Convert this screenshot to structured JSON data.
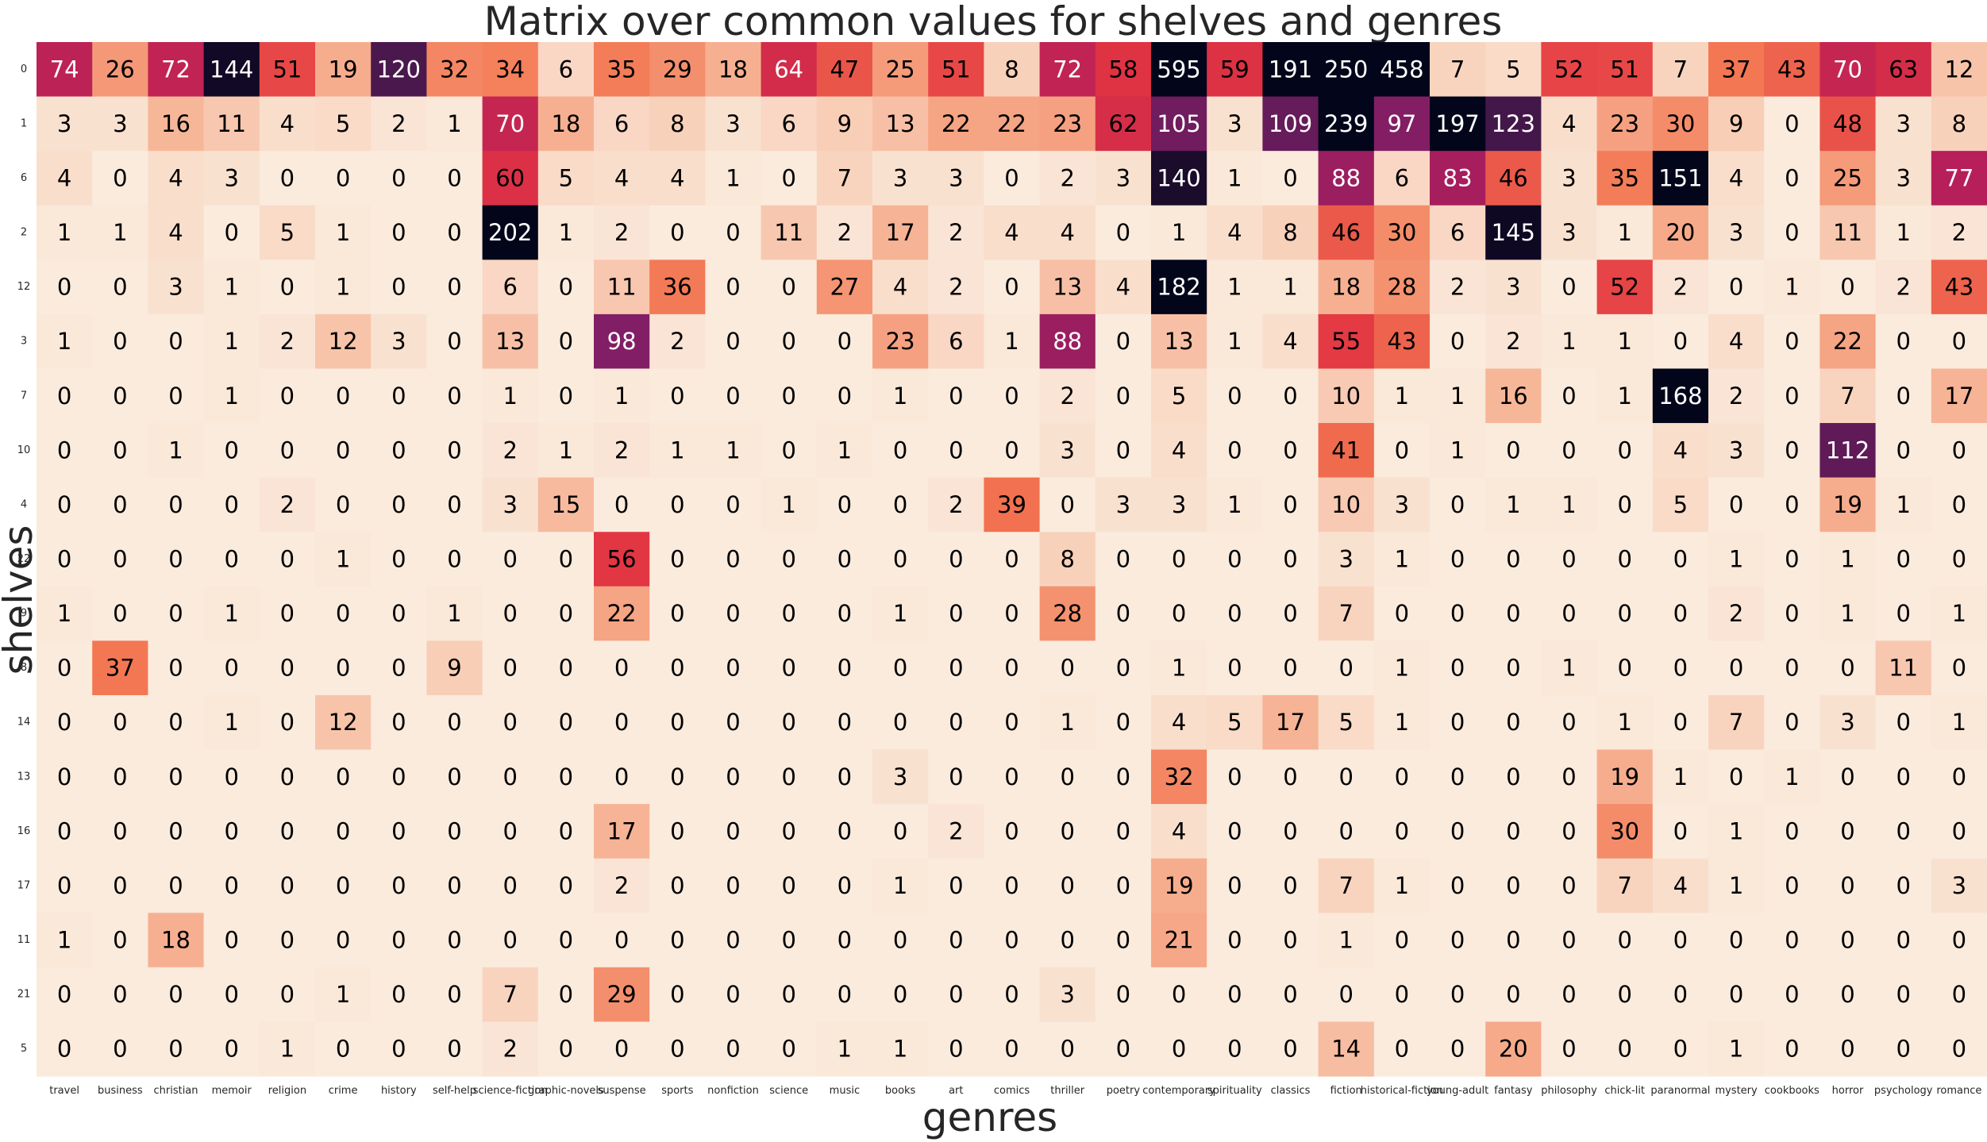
{
  "chart_data": {
    "type": "heatmap",
    "title": "Matrix over common values for shelves and genres",
    "xlabel": "genres",
    "ylabel": "shelves",
    "x_categories": [
      "travel",
      "business",
      "christian",
      "memoir",
      "religion",
      "crime",
      "history",
      "self-help",
      "science-fiction",
      "graphic-novels",
      "suspense",
      "sports",
      "nonfiction",
      "science",
      "music",
      "books",
      "art",
      "comics",
      "thriller",
      "poetry",
      "contemporary",
      "spirituality",
      "classics",
      "fiction",
      "historical-fiction",
      "young-adult",
      "fantasy",
      "philosophy",
      "chick-lit",
      "paranormal",
      "mystery",
      "cookbooks",
      "horror",
      "psychology",
      "romance"
    ],
    "y_categories": [
      "0",
      "1",
      "6",
      "2",
      "12",
      "3",
      "7",
      "10",
      "4",
      "22",
      "9",
      "8",
      "14",
      "13",
      "16",
      "17",
      "11",
      "21",
      "5"
    ],
    "values": [
      [
        74,
        26,
        72,
        144,
        51,
        19,
        120,
        32,
        34,
        6,
        35,
        29,
        18,
        64,
        47,
        25,
        51,
        8,
        72,
        58,
        595,
        59,
        191,
        250,
        458,
        7,
        5,
        52,
        51,
        7,
        37,
        43,
        70,
        63,
        12
      ],
      [
        3,
        3,
        16,
        11,
        4,
        5,
        2,
        1,
        70,
        18,
        6,
        8,
        3,
        6,
        9,
        13,
        22,
        22,
        23,
        62,
        105,
        3,
        109,
        239,
        97,
        197,
        123,
        4,
        23,
        30,
        9,
        0,
        48,
        3,
        8
      ],
      [
        4,
        0,
        4,
        3,
        0,
        0,
        0,
        0,
        60,
        5,
        4,
        4,
        1,
        0,
        7,
        3,
        3,
        0,
        2,
        3,
        140,
        1,
        0,
        88,
        6,
        83,
        46,
        3,
        35,
        151,
        4,
        0,
        25,
        3,
        77
      ],
      [
        1,
        1,
        4,
        0,
        5,
        1,
        0,
        0,
        202,
        1,
        2,
        0,
        0,
        11,
        2,
        17,
        2,
        4,
        4,
        0,
        1,
        4,
        8,
        46,
        30,
        6,
        145,
        3,
        1,
        20,
        3,
        0,
        11,
        1,
        2
      ],
      [
        0,
        0,
        3,
        1,
        0,
        1,
        0,
        0,
        6,
        0,
        11,
        36,
        0,
        0,
        27,
        4,
        2,
        0,
        13,
        4,
        182,
        1,
        1,
        18,
        28,
        2,
        3,
        0,
        52,
        2,
        0,
        1,
        0,
        2,
        43
      ],
      [
        1,
        0,
        0,
        1,
        2,
        12,
        3,
        0,
        13,
        0,
        98,
        2,
        0,
        0,
        0,
        23,
        6,
        1,
        88,
        0,
        13,
        1,
        4,
        55,
        43,
        0,
        2,
        1,
        1,
        0,
        4,
        0,
        22,
        0,
        0
      ],
      [
        0,
        0,
        0,
        1,
        0,
        0,
        0,
        0,
        1,
        0,
        1,
        0,
        0,
        0,
        0,
        1,
        0,
        0,
        2,
        0,
        5,
        0,
        0,
        10,
        1,
        1,
        16,
        0,
        1,
        168,
        2,
        0,
        7,
        0,
        17
      ],
      [
        0,
        0,
        1,
        0,
        0,
        0,
        0,
        0,
        2,
        1,
        2,
        1,
        1,
        0,
        1,
        0,
        0,
        0,
        3,
        0,
        4,
        0,
        0,
        41,
        0,
        1,
        0,
        0,
        0,
        4,
        3,
        0,
        112,
        0,
        0
      ],
      [
        0,
        0,
        0,
        0,
        2,
        0,
        0,
        0,
        3,
        15,
        0,
        0,
        0,
        1,
        0,
        0,
        2,
        39,
        0,
        3,
        3,
        1,
        0,
        10,
        3,
        0,
        1,
        1,
        0,
        5,
        0,
        0,
        19,
        1,
        0
      ],
      [
        0,
        0,
        0,
        0,
        0,
        1,
        0,
        0,
        0,
        0,
        56,
        0,
        0,
        0,
        0,
        0,
        0,
        0,
        8,
        0,
        0,
        0,
        0,
        3,
        1,
        0,
        0,
        0,
        0,
        0,
        1,
        0,
        1,
        0,
        0
      ],
      [
        1,
        0,
        0,
        1,
        0,
        0,
        0,
        1,
        0,
        0,
        22,
        0,
        0,
        0,
        0,
        1,
        0,
        0,
        28,
        0,
        0,
        0,
        0,
        7,
        0,
        0,
        0,
        0,
        0,
        0,
        2,
        0,
        1,
        0,
        1
      ],
      [
        0,
        37,
        0,
        0,
        0,
        0,
        0,
        9,
        0,
        0,
        0,
        0,
        0,
        0,
        0,
        0,
        0,
        0,
        0,
        0,
        1,
        0,
        0,
        0,
        1,
        0,
        0,
        1,
        0,
        0,
        0,
        0,
        0,
        11,
        0
      ],
      [
        0,
        0,
        0,
        1,
        0,
        12,
        0,
        0,
        0,
        0,
        0,
        0,
        0,
        0,
        0,
        0,
        0,
        0,
        1,
        0,
        4,
        5,
        17,
        5,
        1,
        0,
        0,
        0,
        1,
        0,
        7,
        0,
        3,
        0,
        1
      ],
      [
        0,
        0,
        0,
        0,
        0,
        0,
        0,
        0,
        0,
        0,
        0,
        0,
        0,
        0,
        0,
        3,
        0,
        0,
        0,
        0,
        32,
        0,
        0,
        0,
        0,
        0,
        0,
        0,
        19,
        1,
        0,
        1,
        0,
        0,
        0
      ],
      [
        0,
        0,
        0,
        0,
        0,
        0,
        0,
        0,
        0,
        0,
        17,
        0,
        0,
        0,
        0,
        0,
        2,
        0,
        0,
        0,
        4,
        0,
        0,
        0,
        0,
        0,
        0,
        0,
        30,
        0,
        1,
        0,
        0,
        0,
        0
      ],
      [
        0,
        0,
        0,
        0,
        0,
        0,
        0,
        0,
        0,
        0,
        2,
        0,
        0,
        0,
        0,
        1,
        0,
        0,
        0,
        0,
        19,
        0,
        0,
        7,
        1,
        0,
        0,
        0,
        7,
        4,
        1,
        0,
        0,
        0,
        3
      ],
      [
        1,
        0,
        18,
        0,
        0,
        0,
        0,
        0,
        0,
        0,
        0,
        0,
        0,
        0,
        0,
        0,
        0,
        0,
        0,
        0,
        21,
        0,
        0,
        1,
        0,
        0,
        0,
        0,
        0,
        0,
        0,
        0,
        0,
        0,
        0
      ],
      [
        0,
        0,
        0,
        0,
        0,
        1,
        0,
        0,
        7,
        0,
        29,
        0,
        0,
        0,
        0,
        0,
        0,
        0,
        3,
        0,
        0,
        0,
        0,
        0,
        0,
        0,
        0,
        0,
        0,
        0,
        0,
        0,
        0,
        0,
        0
      ],
      [
        0,
        0,
        0,
        0,
        1,
        0,
        0,
        0,
        2,
        0,
        0,
        0,
        0,
        0,
        1,
        1,
        0,
        0,
        0,
        0,
        0,
        0,
        0,
        14,
        0,
        0,
        20,
        0,
        0,
        0,
        1,
        0,
        0,
        0,
        0
      ]
    ],
    "colormap": "rocket_r",
    "colorbar": false,
    "grid": false
  }
}
